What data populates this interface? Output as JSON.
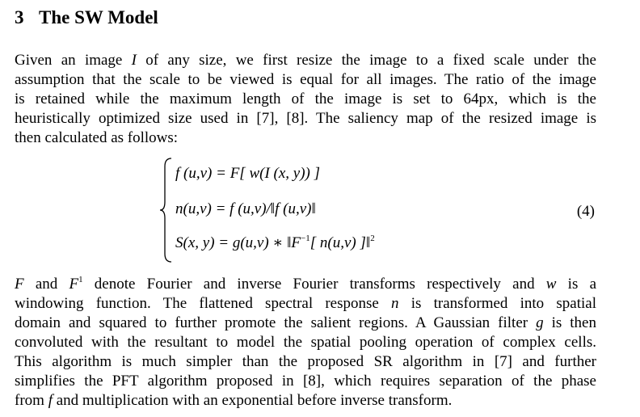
{
  "section": {
    "number": "3",
    "title": "The SW Model"
  },
  "paragraph1": {
    "lines": [
      [
        "Given an image ",
        "I",
        " of any size, we first resize the image to a fixed scale under the"
      ],
      [
        "assumption that the scale to be viewed is equal for all images. The ratio of the image"
      ],
      [
        "is retained while the maximum length of the image is set to 64px, which is the"
      ],
      [
        "heuristically optimized size used in [7], [8]. The saliency map of the resized image is"
      ],
      [
        "then calculated as follows:"
      ]
    ]
  },
  "equation": {
    "line1": "f (u,v) = F[ w(I (x, y)) ]",
    "line2": "n(u,v) = f (u,v)/‖f (u,v)‖",
    "line3_main": "S(x, y) = g(u,v) ∗ ‖F",
    "line3_sup1": "−1",
    "line3_rest": "[ n(u,v) ]‖",
    "line3_sup2": "2",
    "number": "(4)"
  },
  "paragraph2": {
    "lines": [
      [
        "F",
        " and ",
        "F",
        "1",
        " denote Fourier and inverse Fourier transforms respectively and ",
        "w",
        " is a"
      ],
      [
        "windowing function. The flattened spectral response ",
        "n",
        " is transformed into spatial"
      ],
      [
        "domain and squared to further promote the salient regions. A Gaussian filter ",
        "g",
        " is then"
      ],
      [
        "convoluted with the resultant to model the spatial pooling operation of complex cells."
      ],
      [
        "This algorithm is much simpler than the proposed SR algorithm in [7] and further"
      ],
      [
        "simplifies the PFT algorithm proposed in [8], which requires separation of the phase"
      ],
      [
        "from ",
        "f",
        " and multiplication with an exponential before inverse transform."
      ]
    ]
  }
}
